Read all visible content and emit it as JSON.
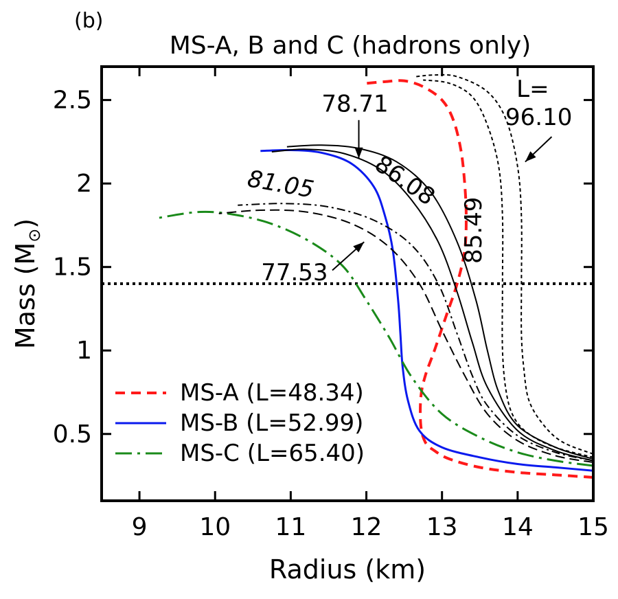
{
  "panel_label": "(b)",
  "chart_data": {
    "type": "line",
    "title": "MS-A, B and C (hadrons only)",
    "xlabel": "Radius (km)",
    "ylabel": "Mass (M",
    "ylabel_sub": "⊙",
    "ylabel_close": ")",
    "xlim": [
      8.5,
      15
    ],
    "ylim": [
      0.1,
      2.7
    ],
    "xticks": [
      9,
      10,
      11,
      12,
      13,
      14,
      15
    ],
    "yticks": [
      0.5,
      1,
      1.5,
      2,
      2.5
    ],
    "ytick_labels": [
      "0.5",
      "1",
      "1.5",
      "2",
      "2.5"
    ],
    "reference_line": {
      "y": 1.4,
      "style": "dotted"
    },
    "legend_placement": "bottom-left",
    "series": [
      {
        "name": "MS-A (L=48.34)",
        "color": "#ff1a1a",
        "dash": "14 9",
        "width": 4,
        "in_legend": true,
        "points": [
          [
            15,
            0.24
          ],
          [
            14.5,
            0.255
          ],
          [
            14.0,
            0.27
          ],
          [
            13.5,
            0.3
          ],
          [
            13.1,
            0.35
          ],
          [
            12.9,
            0.4
          ],
          [
            12.78,
            0.45
          ],
          [
            12.72,
            0.55
          ],
          [
            12.72,
            0.72
          ],
          [
            12.78,
            0.85
          ],
          [
            12.9,
            1.0
          ],
          [
            13.05,
            1.2
          ],
          [
            13.2,
            1.4
          ],
          [
            13.3,
            1.6
          ],
          [
            13.32,
            1.8
          ],
          [
            13.3,
            2.0
          ],
          [
            13.25,
            2.2
          ],
          [
            13.15,
            2.38
          ],
          [
            13.0,
            2.5
          ],
          [
            12.75,
            2.58
          ],
          [
            12.5,
            2.615
          ],
          [
            12.25,
            2.61
          ],
          [
            12.0,
            2.6
          ]
        ]
      },
      {
        "name": "MS-B (L=52.99)",
        "color": "#0a1aee",
        "dash": "",
        "width": 3,
        "in_legend": true,
        "points": [
          [
            15,
            0.28
          ],
          [
            14.5,
            0.3
          ],
          [
            14.0,
            0.32
          ],
          [
            13.5,
            0.36
          ],
          [
            13.0,
            0.42
          ],
          [
            12.7,
            0.52
          ],
          [
            12.55,
            0.7
          ],
          [
            12.48,
            0.9
          ],
          [
            12.45,
            1.1
          ],
          [
            12.42,
            1.3
          ],
          [
            12.35,
            1.6
          ],
          [
            12.25,
            1.8
          ],
          [
            12.1,
            1.98
          ],
          [
            11.8,
            2.12
          ],
          [
            11.4,
            2.185
          ],
          [
            11.0,
            2.2
          ],
          [
            10.6,
            2.195
          ]
        ]
      },
      {
        "name": "MS-C (L=65.40)",
        "color": "#1a8a1a",
        "dash": "24 8 4 8",
        "width": 3,
        "in_legend": true,
        "points": [
          [
            15,
            0.31
          ],
          [
            14.5,
            0.34
          ],
          [
            14.0,
            0.39
          ],
          [
            13.5,
            0.48
          ],
          [
            13.0,
            0.62
          ],
          [
            12.6,
            0.84
          ],
          [
            12.3,
            1.08
          ],
          [
            12.0,
            1.3
          ],
          [
            11.7,
            1.5
          ],
          [
            11.3,
            1.64
          ],
          [
            10.8,
            1.75
          ],
          [
            10.3,
            1.81
          ],
          [
            9.8,
            1.83
          ],
          [
            9.2,
            1.79
          ]
        ]
      },
      {
        "name": "",
        "color": "#000000",
        "dash": "",
        "width": 2,
        "in_legend": false,
        "points": [
          [
            15,
            0.34
          ],
          [
            14.5,
            0.4
          ],
          [
            14.0,
            0.52
          ],
          [
            13.6,
            0.78
          ],
          [
            13.4,
            1.05
          ],
          [
            13.2,
            1.35
          ],
          [
            12.95,
            1.65
          ],
          [
            12.6,
            1.9
          ],
          [
            12.2,
            2.08
          ],
          [
            11.7,
            2.18
          ],
          [
            11.2,
            2.205
          ],
          [
            10.75,
            2.19
          ]
        ]
      },
      {
        "name": "",
        "color": "#000000",
        "dash": "",
        "width": 2,
        "in_legend": false,
        "points": [
          [
            15,
            0.35
          ],
          [
            14.5,
            0.42
          ],
          [
            14.0,
            0.55
          ],
          [
            13.75,
            0.75
          ],
          [
            13.6,
            1.0
          ],
          [
            13.45,
            1.3
          ],
          [
            13.2,
            1.65
          ],
          [
            12.85,
            1.95
          ],
          [
            12.4,
            2.13
          ],
          [
            11.9,
            2.21
          ],
          [
            11.4,
            2.23
          ],
          [
            10.95,
            2.22
          ]
        ]
      },
      {
        "name": "",
        "color": "#000000",
        "dash": "14 7",
        "width": 2,
        "in_legend": false,
        "points": [
          [
            15,
            0.33
          ],
          [
            14.5,
            0.37
          ],
          [
            14.0,
            0.46
          ],
          [
            13.6,
            0.62
          ],
          [
            13.3,
            0.85
          ],
          [
            13.0,
            1.12
          ],
          [
            12.7,
            1.4
          ],
          [
            12.3,
            1.62
          ],
          [
            11.8,
            1.76
          ],
          [
            11.2,
            1.83
          ],
          [
            10.6,
            1.84
          ],
          [
            10.05,
            1.82
          ]
        ]
      },
      {
        "name": "",
        "color": "#000000",
        "dash": "12 5 3 5",
        "width": 2,
        "in_legend": false,
        "points": [
          [
            15,
            0.34
          ],
          [
            14.5,
            0.39
          ],
          [
            14.0,
            0.49
          ],
          [
            13.6,
            0.67
          ],
          [
            13.4,
            0.85
          ],
          [
            13.2,
            1.1
          ],
          [
            12.95,
            1.4
          ],
          [
            12.6,
            1.63
          ],
          [
            12.1,
            1.78
          ],
          [
            11.5,
            1.86
          ],
          [
            10.9,
            1.88
          ],
          [
            10.3,
            1.87
          ]
        ]
      },
      {
        "name": "",
        "color": "#000000",
        "dash": "5 4",
        "width": 2,
        "in_legend": false,
        "points": [
          [
            15,
            0.36
          ],
          [
            14.5,
            0.42
          ],
          [
            14.15,
            0.5
          ],
          [
            13.95,
            0.6
          ],
          [
            13.85,
            0.75
          ],
          [
            13.8,
            1.0
          ],
          [
            13.8,
            1.4
          ],
          [
            13.8,
            1.8
          ],
          [
            13.75,
            2.1
          ],
          [
            13.6,
            2.35
          ],
          [
            13.4,
            2.52
          ],
          [
            13.1,
            2.6
          ],
          [
            12.75,
            2.62
          ]
        ]
      },
      {
        "name": "",
        "color": "#000000",
        "dash": "5 4",
        "width": 2,
        "in_legend": false,
        "points": [
          [
            15,
            0.38
          ],
          [
            14.6,
            0.45
          ],
          [
            14.35,
            0.55
          ],
          [
            14.15,
            0.7
          ],
          [
            14.08,
            0.9
          ],
          [
            14.05,
            1.1
          ],
          [
            14.05,
            1.4
          ],
          [
            14.05,
            1.8
          ],
          [
            14.0,
            2.1
          ],
          [
            13.85,
            2.38
          ],
          [
            13.6,
            2.55
          ],
          [
            13.2,
            2.64
          ],
          [
            12.9,
            2.65
          ],
          [
            12.65,
            2.64
          ]
        ]
      }
    ],
    "annotations": [
      {
        "text": "78.71",
        "x": 11.85,
        "y": 2.43,
        "rotate": 0,
        "italic": false
      },
      {
        "text": "86.08",
        "x": 12.45,
        "y": 1.98,
        "rotate": 35,
        "italic": false
      },
      {
        "text": "81.05",
        "x": 10.85,
        "y": 1.95,
        "rotate": 10,
        "italic": true
      },
      {
        "text": "77.53",
        "x": 11.05,
        "y": 1.42,
        "rotate": 0,
        "italic": false
      },
      {
        "text": "85.49",
        "x": 13.52,
        "y": 1.72,
        "rotate": -90,
        "italic": false
      },
      {
        "text": "L=",
        "x": 14.2,
        "y": 2.52,
        "rotate": 0,
        "italic": false
      },
      {
        "text": "96.10",
        "x": 14.28,
        "y": 2.35,
        "rotate": 0,
        "italic": false
      }
    ],
    "arrows": [
      {
        "from": [
          11.9,
          2.38
        ],
        "to": [
          11.9,
          2.15
        ]
      },
      {
        "from": [
          11.55,
          1.48
        ],
        "to": [
          11.97,
          1.65
        ]
      },
      {
        "from": [
          14.45,
          2.28
        ],
        "to": [
          14.1,
          2.13
        ]
      }
    ]
  }
}
